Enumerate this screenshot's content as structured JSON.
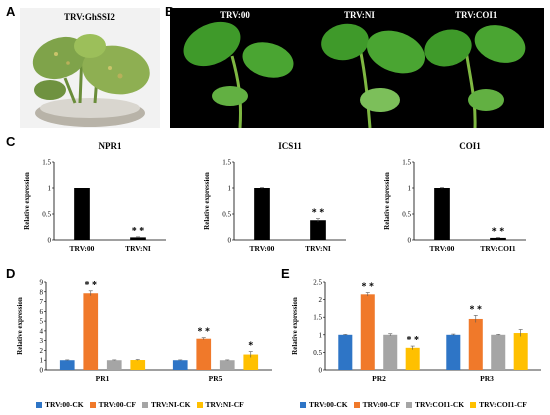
{
  "panels": {
    "A": "A",
    "B": "B",
    "C": "C",
    "D": "D",
    "E": "E"
  },
  "photo_labels": {
    "a": "TRV:GhSSI2",
    "b1": "TRV:00",
    "b2": "TRV:NI",
    "b3": "TRV:COI1"
  },
  "colors": {
    "black_bar": "#000000",
    "blue": "#2E75C6",
    "orange": "#F0792A",
    "gray": "#A5A5A5",
    "yellow": "#FFC000"
  },
  "chart_data": [
    {
      "id": "npr1",
      "type": "bar",
      "title": "NPR1",
      "ylabel": "Relative expression",
      "categories": [
        "TRV:00",
        "TRV:NI"
      ],
      "values": [
        1.0,
        0.05
      ],
      "errors": [
        0.0,
        0.01
      ],
      "stars": [
        "",
        "**"
      ],
      "ylim": [
        0,
        1.5
      ],
      "yticks": [
        "0",
        "0.5",
        "1",
        "1.5"
      ]
    },
    {
      "id": "ics11",
      "type": "bar",
      "title": "ICS11",
      "ylabel": "Relative expression",
      "categories": [
        "TRV:00",
        "TRV:NI"
      ],
      "values": [
        1.0,
        0.38
      ],
      "errors": [
        0.01,
        0.03
      ],
      "stars": [
        "",
        "**"
      ],
      "ylim": [
        0,
        1.5
      ],
      "yticks": [
        "0",
        "0.5",
        "1",
        "1.5"
      ]
    },
    {
      "id": "coi1",
      "type": "bar",
      "title": "COI1",
      "ylabel": "Relative expression",
      "categories": [
        "TRV:00",
        "TRV:COI1"
      ],
      "values": [
        1.0,
        0.04
      ],
      "errors": [
        0.01,
        0.01
      ],
      "stars": [
        "",
        "**"
      ],
      "ylim": [
        0,
        1.5
      ],
      "yticks": [
        "0",
        "0.5",
        "1",
        "1.5"
      ]
    },
    {
      "id": "pr1pr5",
      "type": "bar",
      "ylabel": "Relative expression",
      "categories": [
        "PR1",
        "PR5"
      ],
      "series": [
        {
          "name": "TRV:00-CK",
          "values": [
            1.0,
            1.0
          ],
          "errors": [
            0.03,
            0.03
          ],
          "stars": [
            "",
            ""
          ]
        },
        {
          "name": "TRV:00-CF",
          "values": [
            7.85,
            3.2
          ],
          "errors": [
            0.25,
            0.1
          ],
          "stars": [
            "**",
            "**"
          ]
        },
        {
          "name": "TRV:NI-CK",
          "values": [
            1.0,
            1.0
          ],
          "errors": [
            0.03,
            0.03
          ],
          "stars": [
            "",
            ""
          ]
        },
        {
          "name": "TRV:NI-CF",
          "values": [
            1.02,
            1.58
          ],
          "errors": [
            0.05,
            0.3
          ],
          "stars": [
            "",
            "*"
          ]
        }
      ],
      "ylim": [
        0,
        9
      ],
      "yticks": [
        "0",
        "1",
        "2",
        "3",
        "4",
        "5",
        "6",
        "7",
        "8",
        "9"
      ]
    },
    {
      "id": "pr2pr3",
      "type": "bar",
      "ylabel": "Relative expression",
      "categories": [
        "PR2",
        "PR3"
      ],
      "series": [
        {
          "name": "TRV:00-CK",
          "values": [
            1.0,
            1.0
          ],
          "errors": [
            0.01,
            0.02
          ],
          "stars": [
            "",
            ""
          ]
        },
        {
          "name": "TRV:00-CF",
          "values": [
            2.15,
            1.45
          ],
          "errors": [
            0.05,
            0.1
          ],
          "stars": [
            "**",
            "**"
          ]
        },
        {
          "name": "TRV:COI1-CK",
          "values": [
            1.0,
            1.0
          ],
          "errors": [
            0.03,
            0.01
          ],
          "stars": [
            "",
            ""
          ]
        },
        {
          "name": "TRV:COI1-CF",
          "values": [
            0.63,
            1.05
          ],
          "errors": [
            0.05,
            0.1
          ],
          "stars": [
            "**",
            ""
          ]
        }
      ],
      "ylim": [
        0,
        2.5
      ],
      "yticks": [
        "0",
        "0.5",
        "1",
        "1.5",
        "2",
        "2.5"
      ]
    }
  ],
  "legends": {
    "d": [
      "TRV:00-CK",
      "TRV:00-CF",
      "TRV:NI-CK",
      "TRV:NI-CF"
    ],
    "e": [
      "TRV:00-CK",
      "TRV:00-CF",
      "TRV:COI1-CK",
      "TRV:COI1-CF"
    ]
  }
}
